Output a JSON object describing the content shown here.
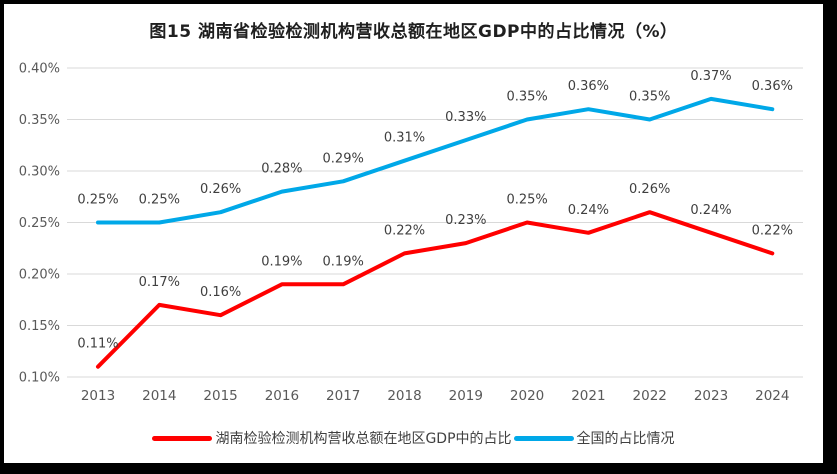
{
  "title": "图15 湖南省检验检测机构营收总额在地区GDP中的占比情况（%）",
  "colors": {
    "hunan": "#ff0000",
    "national": "#00a8e8",
    "grid": "#d9d9d9",
    "axis_text": "#595959",
    "label_text": "#3f3f3f"
  },
  "chart_data": {
    "type": "line",
    "categories": [
      "2013",
      "2014",
      "2015",
      "2016",
      "2017",
      "2018",
      "2019",
      "2020",
      "2021",
      "2022",
      "2023",
      "2024"
    ],
    "series": [
      {
        "name": "湖南检验检测机构营收总额在地区GDP中的占比",
        "color_key": "hunan",
        "values": [
          0.11,
          0.17,
          0.16,
          0.19,
          0.19,
          0.22,
          0.23,
          0.25,
          0.24,
          0.26,
          0.24,
          0.22
        ],
        "labels": [
          "0.11%",
          "0.17%",
          "0.16%",
          "0.19%",
          "0.19%",
          "0.22%",
          "0.23%",
          "0.25%",
          "0.24%",
          "0.26%",
          "0.24%",
          "0.22%"
        ]
      },
      {
        "name": "全国的占比情况",
        "color_key": "national",
        "values": [
          0.25,
          0.25,
          0.26,
          0.28,
          0.29,
          0.31,
          0.33,
          0.35,
          0.36,
          0.35,
          0.37,
          0.36
        ],
        "labels": [
          "0.25%",
          "0.25%",
          "0.26%",
          "0.28%",
          "0.29%",
          "0.31%",
          "0.33%",
          "0.35%",
          "0.36%",
          "0.35%",
          "0.37%",
          "0.36%"
        ]
      }
    ],
    "y_axis": {
      "ticks": [
        {
          "label": "0.40%",
          "value": 0.4
        },
        {
          "label": "0.35%",
          "value": 0.35
        },
        {
          "label": "0.30%",
          "value": 0.3
        },
        {
          "label": "0.25%",
          "value": 0.25
        },
        {
          "label": "0.20%",
          "value": 0.2
        },
        {
          "label": "0.15%",
          "value": 0.15
        },
        {
          "label": "0.10%",
          "value": 0.1
        }
      ],
      "min": 0.1,
      "max": 0.4,
      "grid": true
    },
    "legend_position": "bottom",
    "data_labels": true
  }
}
